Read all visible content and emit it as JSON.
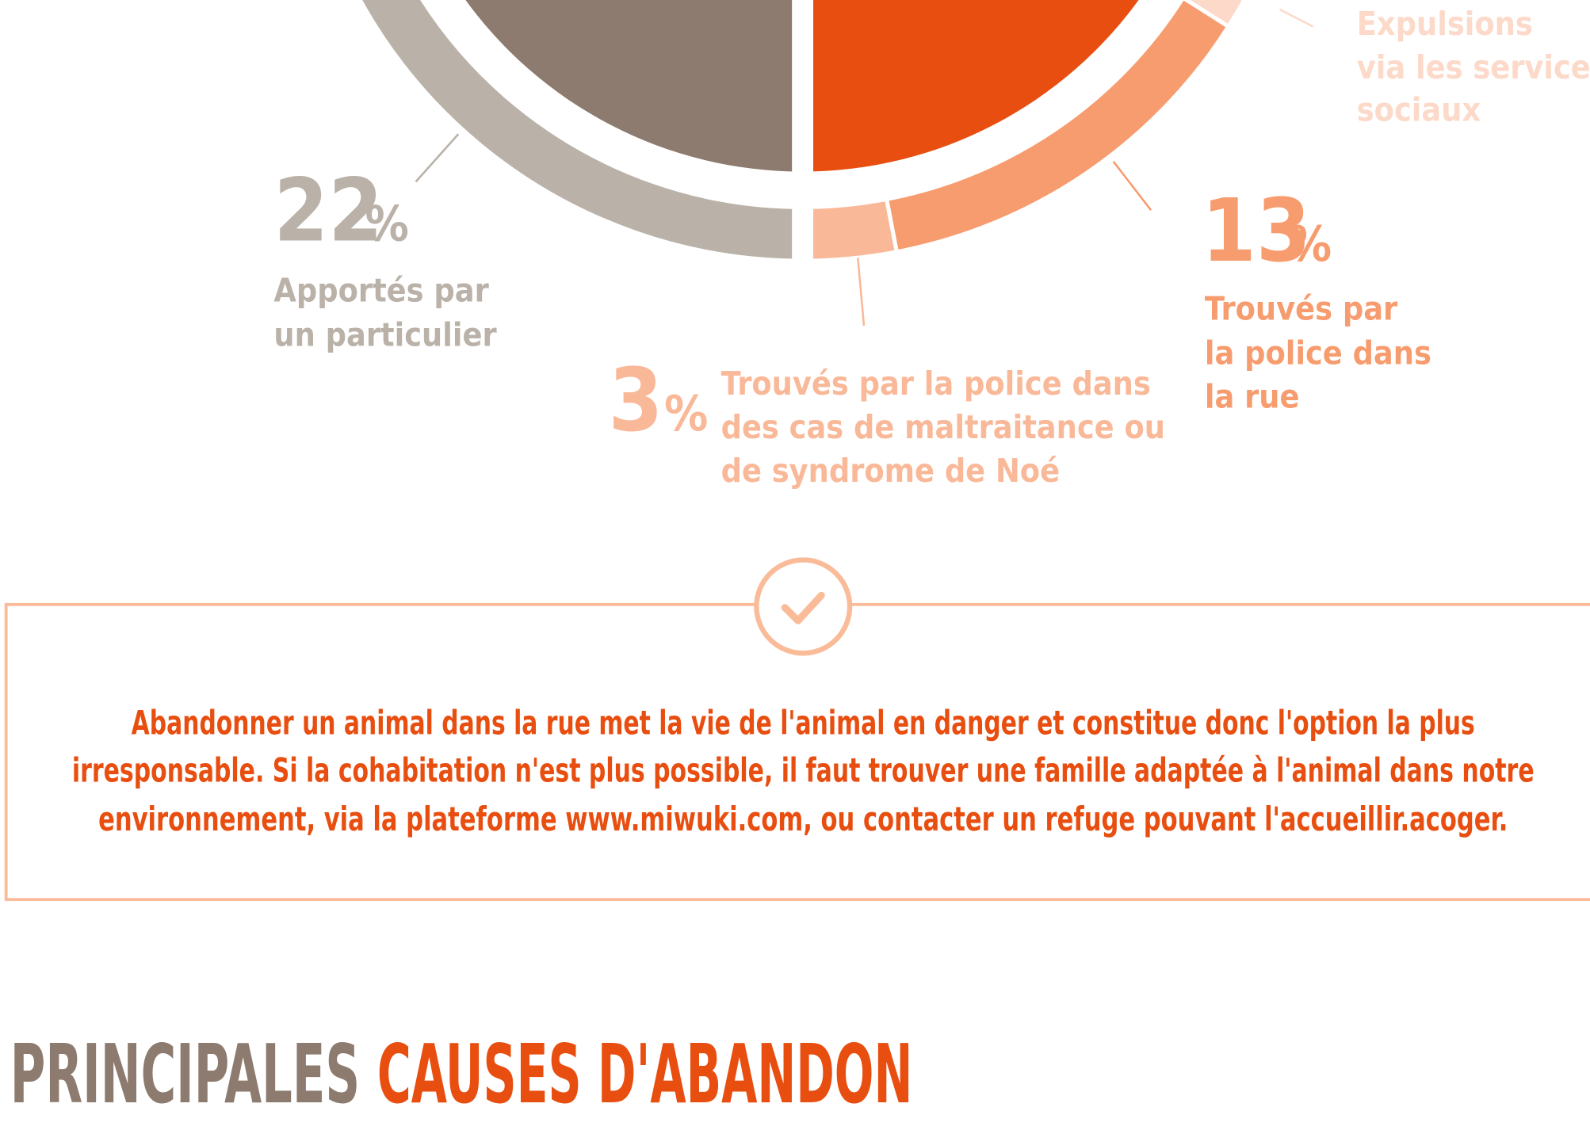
{
  "donut": {
    "segments": [
      {
        "value": 22,
        "unit": "%",
        "label_lines": [
          "Apportés par",
          "un particulier"
        ],
        "color": "#bab2a8"
      },
      {
        "value": 3,
        "unit": "%",
        "label_lines": [
          "Trouvés par la police dans",
          "des cas de maltraitance ou",
          "de syndrome de Noé"
        ],
        "color": "#f9b898"
      },
      {
        "value": 13,
        "unit": "%",
        "label_lines": [
          "Trouvés par",
          "la police dans",
          "la rue"
        ],
        "color": "#f79c6e"
      },
      {
        "label_lines": [
          "Expulsions",
          "via les services",
          "sociaux"
        ],
        "color": "#fcd9c8"
      }
    ]
  },
  "notice": {
    "line1": "Abandonner un animal dans la rue met la vie de l'animal en danger et constitue donc l'option la plus",
    "line2": "irresponsable. Si la cohabitation n'est plus possible, il faut trouver une famille adaptée à l'animal dans notre",
    "line3_start": "environnement, via la plateforme ",
    "line3_link": "www.miwuki.com",
    "line3_end": ", ou contacter un refuge pouvant l'accueillir.acoger."
  },
  "heading": {
    "part1": "PRINCIPALES",
    "part2": "CAUSES D'ABANDON"
  }
}
